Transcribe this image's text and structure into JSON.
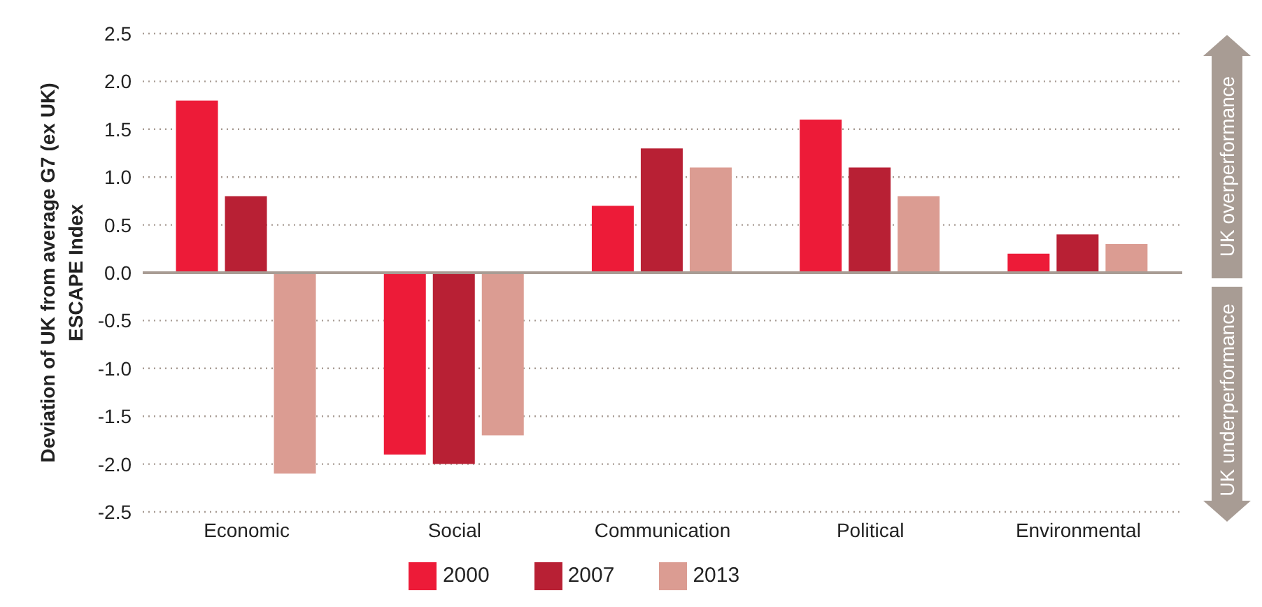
{
  "chart_data": {
    "type": "bar",
    "ylabel": "Deviation of UK from average G7 (ex UK) ESCAPE Index",
    "categories": [
      "Economic",
      "Social",
      "Communication",
      "Political",
      "Environmental"
    ],
    "series": [
      {
        "name": "2000",
        "color": "#ed1b38",
        "values": [
          1.8,
          -1.9,
          0.7,
          1.6,
          0.2
        ]
      },
      {
        "name": "2007",
        "color": "#b82034",
        "values": [
          0.8,
          -2.0,
          1.3,
          1.1,
          0.4
        ]
      },
      {
        "name": "2013",
        "color": "#db9c92",
        "values": [
          -2.1,
          -1.7,
          1.1,
          0.8,
          0.3
        ]
      }
    ],
    "ylim": [
      -2.5,
      2.5
    ],
    "yticks": [
      {
        "value": 2.5,
        "label": "2.5"
      },
      {
        "value": 2,
        "label": "2.0"
      },
      {
        "value": 1.5,
        "label": "1.5"
      },
      {
        "value": 1,
        "label": "1.0"
      },
      {
        "value": 0.5,
        "label": "0.5"
      },
      {
        "value": 0,
        "label": "0.0"
      },
      {
        "value": -0.5,
        "label": "-0.5"
      },
      {
        "value": -1,
        "label": "-1.0"
      },
      {
        "value": -1.5,
        "label": "-1.5"
      },
      {
        "value": -2,
        "label": "-2.0"
      },
      {
        "value": -2.5,
        "label": "-2.5"
      }
    ],
    "grid": "y",
    "legend": "bottom",
    "ref_lines": [
      {
        "axis": "y",
        "value": 0,
        "color": "#a89c94"
      }
    ],
    "annotations": [
      "UK overperformance",
      "UK underperformance"
    ]
  }
}
